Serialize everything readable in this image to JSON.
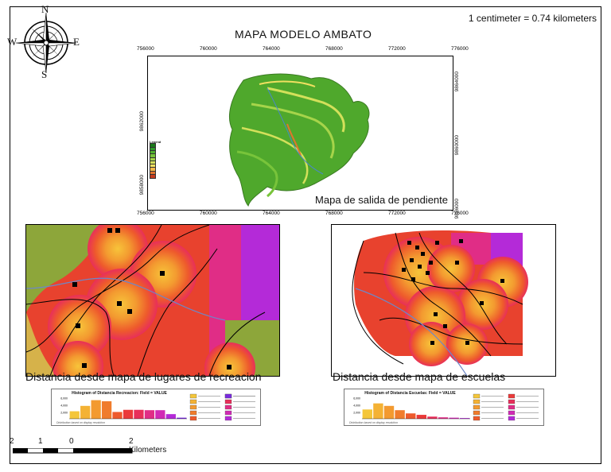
{
  "map": {
    "scale_note": "1 centimeter = 0.74 kilometers",
    "title": "MAPA MODELO AMBATO",
    "compass": {
      "n": "N",
      "s": "S",
      "e": "E",
      "w": "W"
    },
    "top_panel": {
      "caption": "Mapa de salida de pendiente",
      "x_ticks": [
        "756000",
        "760000",
        "764000",
        "768000",
        "772000",
        "776000"
      ],
      "y_ticks_left": [
        "9862000",
        "9858000"
      ],
      "y_ticks_right": [
        "9864000",
        "9860000",
        "9856000"
      ],
      "legend_title": "Legend",
      "legend_colors": [
        "#1a7a1a",
        "#2e9a2a",
        "#4fb22f",
        "#78c43a",
        "#a6d44a",
        "#d3e05a",
        "#f0e060",
        "#f4b84a",
        "#e0742e",
        "#c33b1e"
      ]
    },
    "left_panel": {
      "caption": "Distancia desde mapa de lugares de recreacion",
      "histogram_title": "Histogram of Distancia Recreacion: Field = VALUE",
      "histogram_y_ticks": [
        "6,000",
        "4,000",
        "2,000"
      ],
      "histogram_footer": "Distribution based on display resolution",
      "histogram_values": [
        2100,
        3600,
        5200,
        4900,
        1900,
        2500,
        2500,
        2400,
        2400,
        1300,
        300
      ],
      "histogram_colors": [
        "#f4c63a",
        "#f4b234",
        "#f39a30",
        "#f07c2c",
        "#ee5a2c",
        "#eb3a3a",
        "#e82f5a",
        "#e02d86",
        "#d12ab5",
        "#b42ad8",
        "#7a2ae0"
      ]
    },
    "right_panel": {
      "caption": "Distancia desde mapa de escuelas",
      "histogram_title": "Histogram of Distancia Escuelas: Field = VALUE",
      "histogram_y_ticks": [
        "6,000",
        "4,000",
        "2,000"
      ],
      "histogram_footer": "Distribution based on display resolution",
      "histogram_values": [
        2600,
        4300,
        3600,
        2400,
        1500,
        1100,
        600,
        400,
        300,
        200
      ],
      "histogram_colors": [
        "#f4c63a",
        "#f4b234",
        "#f39a30",
        "#f07c2c",
        "#ee5a2c",
        "#eb3a3a",
        "#e82f5a",
        "#e02d86",
        "#d12ab5",
        "#b42ad8"
      ]
    },
    "scale_bar": {
      "labels": [
        "2",
        "1",
        "0",
        "2 Kilometers"
      ]
    }
  }
}
